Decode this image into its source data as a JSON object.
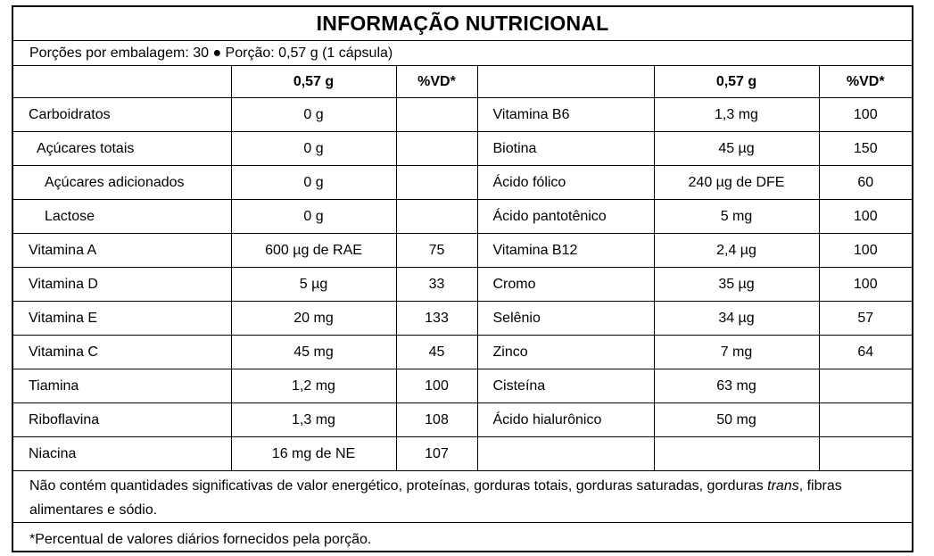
{
  "title": "INFORMAÇÃO NUTRICIONAL",
  "portion": "Porções por embalagem: 30 ● Porção: 0,57 g (1 cápsula)",
  "headers": {
    "portion": "0,57 g",
    "vd": "%VD*"
  },
  "left_rows": [
    {
      "name": "Carboidratos",
      "amount": "0 g",
      "vd": "",
      "indent": 0
    },
    {
      "name": "Açúcares totais",
      "amount": "0 g",
      "vd": "",
      "indent": 1
    },
    {
      "name": "Açúcares adicionados",
      "amount": "0 g",
      "vd": "",
      "indent": 2
    },
    {
      "name": "Lactose",
      "amount": "0 g",
      "vd": "",
      "indent": 2
    },
    {
      "name": "Vitamina A",
      "amount": "600 µg de RAE",
      "vd": "75",
      "indent": 0
    },
    {
      "name": "Vitamina D",
      "amount": "5 µg",
      "vd": "33",
      "indent": 0
    },
    {
      "name": "Vitamina E",
      "amount": "20 mg",
      "vd": "133",
      "indent": 0
    },
    {
      "name": "Vitamina C",
      "amount": "45 mg",
      "vd": "45",
      "indent": 0
    },
    {
      "name": "Tiamina",
      "amount": "1,2 mg",
      "vd": "100",
      "indent": 0
    },
    {
      "name": "Riboflavina",
      "amount": "1,3 mg",
      "vd": "108",
      "indent": 0
    },
    {
      "name": "Niacina",
      "amount": "16 mg de NE",
      "vd": "107",
      "indent": 0
    }
  ],
  "right_rows": [
    {
      "name": "Vitamina B6",
      "amount": "1,3 mg",
      "vd": "100"
    },
    {
      "name": "Biotina",
      "amount": "45 µg",
      "vd": "150"
    },
    {
      "name": "Ácido fólico",
      "amount": "240 µg de DFE",
      "vd": "60"
    },
    {
      "name": "Ácido pantotênico",
      "amount": "5 mg",
      "vd": "100"
    },
    {
      "name": "Vitamina B12",
      "amount": "2,4 µg",
      "vd": "100"
    },
    {
      "name": "Cromo",
      "amount": "35 µg",
      "vd": "100"
    },
    {
      "name": "Selênio",
      "amount": "34 µg",
      "vd": "57"
    },
    {
      "name": "Zinco",
      "amount": "7 mg",
      "vd": "64"
    },
    {
      "name": "Cisteína",
      "amount": "63 mg",
      "vd": ""
    },
    {
      "name": "Ácido hialurônico",
      "amount": "50 mg",
      "vd": ""
    },
    {
      "name": "",
      "amount": "",
      "vd": ""
    }
  ],
  "note": {
    "before": "Não contém quantidades significativas de valor energético, proteínas, gorduras totais, gorduras saturadas, gorduras ",
    "italic": "trans",
    "after": ", fibras alimentares e sódio."
  },
  "footnote": "*Percentual de valores diários fornecidos pela porção."
}
